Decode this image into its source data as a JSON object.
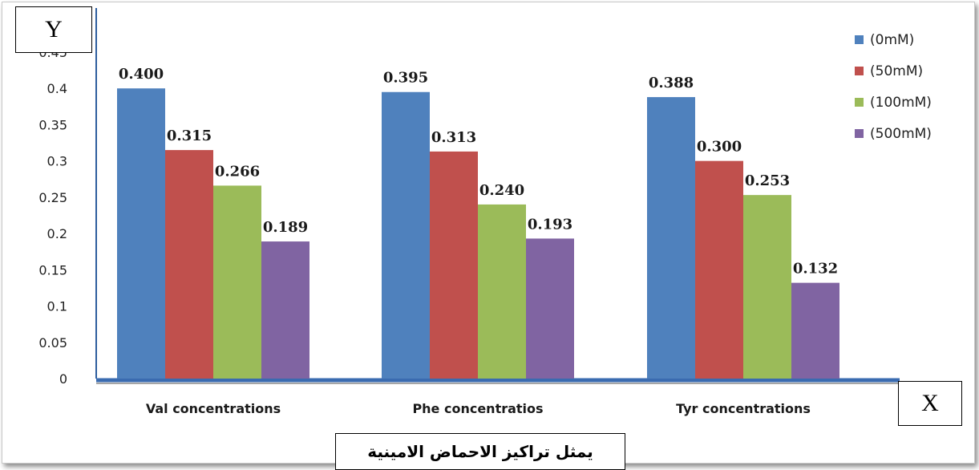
{
  "chart_data": {
    "type": "bar",
    "categories": [
      "Val concentrations",
      "Phe concentratios",
      "Tyr concentrations"
    ],
    "series": [
      {
        "name": "(0mM)",
        "values": [
          0.4,
          0.395,
          0.388
        ],
        "labels": [
          "0.400",
          "0.395",
          "0.388"
        ],
        "color": "#4f81bd"
      },
      {
        "name": "(50mM)",
        "values": [
          0.315,
          0.313,
          0.3
        ],
        "labels": [
          "0.315",
          "0.313",
          "0.300"
        ],
        "color": "#c0504d"
      },
      {
        "name": "(100mM)",
        "values": [
          0.266,
          0.24,
          0.253
        ],
        "labels": [
          "0.266",
          "0.240",
          "0.253"
        ],
        "color": "#9bbb59"
      },
      {
        "name": "(500mM)",
        "values": [
          0.189,
          0.193,
          0.132
        ],
        "labels": [
          "0.189",
          "0.193",
          "0.132"
        ],
        "color": "#8064a2"
      }
    ],
    "yticks": [
      "0",
      "0.05",
      "0.1",
      "0.15",
      "0.2",
      "0.25",
      "0.3",
      "0.35",
      "0.4",
      "0.45"
    ],
    "ylim": [
      0,
      0.45
    ],
    "grid": false,
    "legend_position": "right"
  },
  "annotations": {
    "y_box": "Y",
    "x_box": "X",
    "caption": "يمثل تراكيز الاحماض الامينية"
  }
}
